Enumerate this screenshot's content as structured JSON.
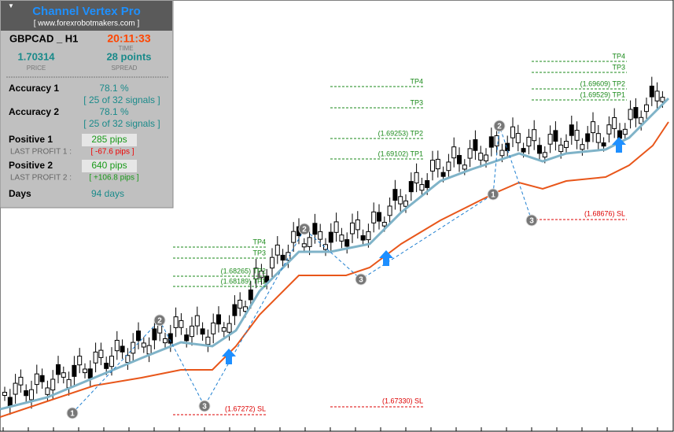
{
  "panel": {
    "title": "Channel Vertex Pro",
    "url": "[ www.forexrobotmakers.com ]",
    "symbol": "GBPCAD _ H1",
    "time": "20:11:33",
    "time_label": "TIME",
    "price": "1.70314",
    "price_label": "PRICE",
    "spread": "28 points",
    "spread_label": "SPREAD",
    "accuracy": [
      {
        "label": "Accuracy 1",
        "value": "78.1 %",
        "detail": "[ 25 of 32 signals ]"
      },
      {
        "label": "Accuracy 2",
        "value": "78.1 %",
        "detail": "[ 25 of 32 signals ]"
      }
    ],
    "positive": [
      {
        "label": "Positive 1",
        "value": "285 pips",
        "sub_label": "LAST PROFIT 1 :",
        "sub_value": "[ -67.6 pips ]"
      },
      {
        "label": "Positive 2",
        "value": "640 pips",
        "sub_label": "LAST PROFIT 2 :",
        "sub_value": "[ +106.8 pips ]"
      }
    ],
    "days_label": "Days",
    "days": "94 days"
  },
  "levels": [
    {
      "tp4": "TP4",
      "tp3": "TP3",
      "tp2": "(1.68265) TP2",
      "tp1": "(1.68189) TP1",
      "sl": "(1.67272) SL"
    },
    {
      "tp4": "TP4",
      "tp3": "TP3",
      "tp2": "(1.69253) TP2",
      "tp1": "(1.69102) TP1",
      "sl": "(1.67330) SL"
    },
    {
      "tp4": "TP4",
      "tp3": "TP3",
      "tp2": "(1.69609) TP2",
      "tp1": "(1.69529) TP1",
      "sl": "(1.68676) SL"
    }
  ],
  "markers": [
    "1",
    "2",
    "3",
    "2",
    "3",
    "1",
    "2",
    "3"
  ]
}
